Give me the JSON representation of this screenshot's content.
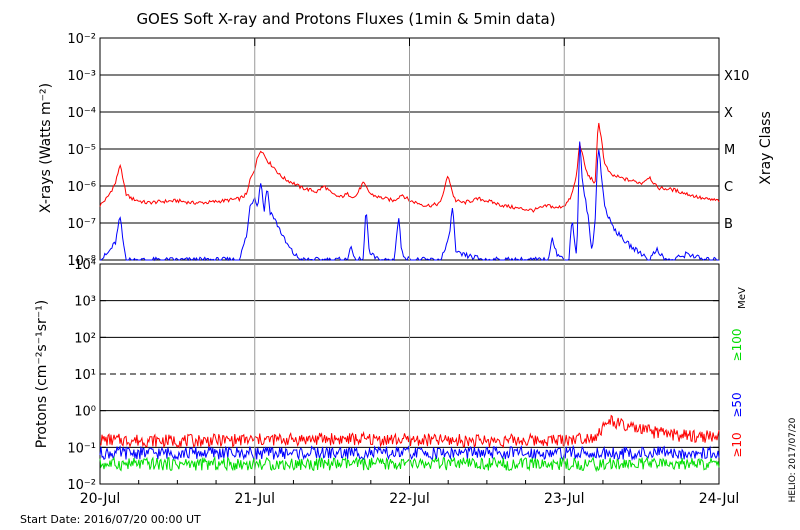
{
  "title": "GOES Soft X-ray and Protons Fluxes   (1min & 5min data)",
  "start_date": "Start Date: 2016/07/20 00:00 UT",
  "credit": "HELIO: 2017/07/20",
  "colors": {
    "xray_long": "#ff0000",
    "xray_short": "#0000ff",
    "proton_ge10": "#ff0000",
    "proton_ge50": "#0000ff",
    "proton_ge100": "#00dd00",
    "frame": "#000000",
    "day_divider": "#999999"
  },
  "chart_data": [
    {
      "type": "line",
      "panel": "xray",
      "ylabel": "X-rays (Watts m⁻²)",
      "yscale": "log",
      "ylim": [
        1e-08,
        0.01
      ],
      "y_ticks": [
        "10⁻⁸",
        "10⁻⁷",
        "10⁻⁶",
        "10⁻⁵",
        "10⁻⁴",
        "10⁻³",
        "10⁻²"
      ],
      "gridlines": [
        1e-07,
        1e-06,
        1e-05,
        0.0001,
        0.001
      ],
      "xlim": [
        "2016-07-20",
        "2016-07-24"
      ],
      "right_axis_label": "Xray Class",
      "flare_classes": [
        {
          "label": "B",
          "value": 1e-07
        },
        {
          "label": "C",
          "value": 1e-06
        },
        {
          "label": "M",
          "value": 1e-05
        },
        {
          "label": "X",
          "value": 0.0001
        },
        {
          "label": "X10",
          "value": 0.001
        }
      ],
      "series": [
        {
          "color": "#ff0000",
          "x_days": [
            0.0,
            0.05,
            0.1,
            0.13,
            0.15,
            0.17,
            0.19,
            0.21,
            0.25,
            0.3,
            0.4,
            0.5,
            0.6,
            0.7,
            0.8,
            0.9,
            0.95,
            0.97,
            1.0,
            1.02,
            1.04,
            1.06,
            1.08,
            1.1,
            1.13,
            1.16,
            1.2,
            1.25,
            1.3,
            1.35,
            1.4,
            1.45,
            1.5,
            1.55,
            1.6,
            1.65,
            1.7,
            1.75,
            1.8,
            1.85,
            1.9,
            1.95,
            2.0,
            2.05,
            2.1,
            2.15,
            2.2,
            2.25,
            2.28,
            2.3,
            2.35,
            2.4,
            2.45,
            2.5,
            2.6,
            2.7,
            2.8,
            2.9,
            2.95,
            3.0,
            3.03,
            3.05,
            3.08,
            3.1,
            3.13,
            3.15,
            3.18,
            3.2,
            3.22,
            3.24,
            3.26,
            3.3,
            3.4,
            3.5,
            3.55,
            3.6,
            3.7,
            3.8,
            3.9,
            4.0
          ],
          "y": [
            3e-07,
            5e-07,
            1.2e-06,
            4e-06,
            1.3e-06,
            6e-07,
            5e-07,
            4.5e-07,
            4e-07,
            3.5e-07,
            3.8e-07,
            4e-07,
            3.5e-07,
            3.6e-07,
            4e-07,
            4.5e-07,
            6e-07,
            1.5e-06,
            3e-06,
            6e-06,
            1e-05,
            7e-06,
            5e-06,
            4e-06,
            3e-06,
            2e-06,
            1.5e-06,
            1.2e-06,
            9e-07,
            8e-07,
            7e-07,
            1e-06,
            6e-07,
            5e-07,
            6e-07,
            5e-07,
            1.2e-06,
            6e-07,
            5e-07,
            4.5e-07,
            4e-07,
            6e-07,
            4e-07,
            3.5e-07,
            3e-07,
            3e-07,
            3.5e-07,
            2e-06,
            6e-07,
            4e-07,
            3.5e-07,
            4e-07,
            4.5e-07,
            4e-07,
            3e-07,
            2.5e-07,
            2.2e-07,
            3e-07,
            2.5e-07,
            3e-07,
            4e-07,
            6e-07,
            2e-06,
            1.5e-05,
            4e-06,
            2e-06,
            1.5e-06,
            1.2e-06,
            6e-05,
            2e-05,
            4e-06,
            2e-06,
            1.5e-06,
            1.2e-06,
            1.8e-06,
            9e-07,
            8e-07,
            6e-07,
            4.5e-07,
            4e-07
          ]
        },
        {
          "color": "#0000ff",
          "x_days": [
            0.0,
            0.05,
            0.1,
            0.13,
            0.15,
            0.17,
            0.19,
            0.22,
            0.25,
            0.4,
            0.6,
            0.9,
            0.95,
            0.97,
            1.0,
            1.02,
            1.04,
            1.06,
            1.08,
            1.1,
            1.12,
            1.14,
            1.16,
            1.2,
            1.25,
            1.3,
            1.4,
            1.5,
            1.6,
            1.62,
            1.64,
            1.7,
            1.72,
            1.74,
            1.8,
            1.9,
            1.93,
            1.95,
            2.0,
            2.1,
            2.2,
            2.25,
            2.28,
            2.3,
            2.5,
            2.8,
            2.9,
            2.92,
            2.95,
            3.0,
            3.03,
            3.05,
            3.08,
            3.1,
            3.12,
            3.15,
            3.18,
            3.2,
            3.22,
            3.24,
            3.26,
            3.3,
            3.35,
            3.4,
            3.45,
            3.5,
            3.55,
            3.6,
            3.65,
            3.7,
            3.8,
            3.9,
            4.0
          ],
          "y": [
            1e-08,
            1.5e-08,
            3e-08,
            1.5e-07,
            3e-08,
            1e-08,
            1e-08,
            1e-08,
            1e-08,
            1e-08,
            1e-08,
            1e-08,
            5e-08,
            3e-07,
            5e-07,
            3e-07,
            1.5e-06,
            2e-07,
            1e-06,
            2e-07,
            1.5e-07,
            1e-07,
            7e-08,
            3e-08,
            1.5e-08,
            1e-08,
            1e-08,
            1e-08,
            1e-08,
            3e-08,
            1e-08,
            1e-08,
            3e-07,
            1.5e-08,
            1e-08,
            1e-08,
            1.5e-07,
            1.5e-08,
            1e-08,
            1e-08,
            1e-08,
            3e-08,
            3e-07,
            1.5e-08,
            1e-08,
            1e-08,
            1e-08,
            5e-08,
            1.5e-08,
            1e-08,
            1e-08,
            1.5e-07,
            1e-08,
            1.5e-05,
            1e-06,
            2e-07,
            1.5e-08,
            1.5e-07,
            1.5e-05,
            2e-06,
            3e-07,
            1e-07,
            5e-08,
            3e-08,
            2e-08,
            1.5e-08,
            1e-08,
            2e-08,
            1e-08,
            1e-08,
            1.5e-08,
            1e-08,
            1e-08
          ]
        }
      ]
    },
    {
      "type": "line",
      "panel": "protons",
      "ylabel": "Protons (cm⁻²s⁻¹sr⁻¹)",
      "yscale": "log",
      "ylim": [
        0.01,
        10000
      ],
      "y_ticks": [
        "10⁻²",
        "10⁻¹",
        "10⁰",
        "10¹",
        "10²",
        "10³",
        "10⁴"
      ],
      "gridlines": [
        0.1,
        1,
        100,
        1000
      ],
      "threshold_line": 10,
      "xlim": [
        "2016-07-20",
        "2016-07-24"
      ],
      "x_tick_labels": [
        "20-Jul",
        "21-Jul",
        "22-Jul",
        "23-Jul",
        "24-Jul"
      ],
      "right_axis_label": "MeV",
      "series": [
        {
          "name": "≥10",
          "color": "#ff0000",
          "x_days": [
            0.0,
            0.5,
            1.0,
            1.5,
            2.0,
            2.5,
            3.0,
            3.2,
            3.3,
            3.4,
            3.5,
            3.6,
            3.8,
            4.0
          ],
          "y": [
            0.16,
            0.15,
            0.16,
            0.17,
            0.16,
            0.15,
            0.16,
            0.2,
            0.55,
            0.35,
            0.3,
            0.25,
            0.2,
            0.2
          ]
        },
        {
          "name": "≥50",
          "color": "#0000ff",
          "x_days": [
            0.0,
            1.0,
            2.0,
            3.0,
            4.0
          ],
          "y": [
            0.07,
            0.07,
            0.07,
            0.07,
            0.07
          ]
        },
        {
          "name": "≥100",
          "color": "#00dd00",
          "x_days": [
            0.0,
            1.0,
            2.0,
            3.0,
            4.0
          ],
          "y": [
            0.035,
            0.035,
            0.035,
            0.035,
            0.035
          ]
        }
      ]
    }
  ]
}
